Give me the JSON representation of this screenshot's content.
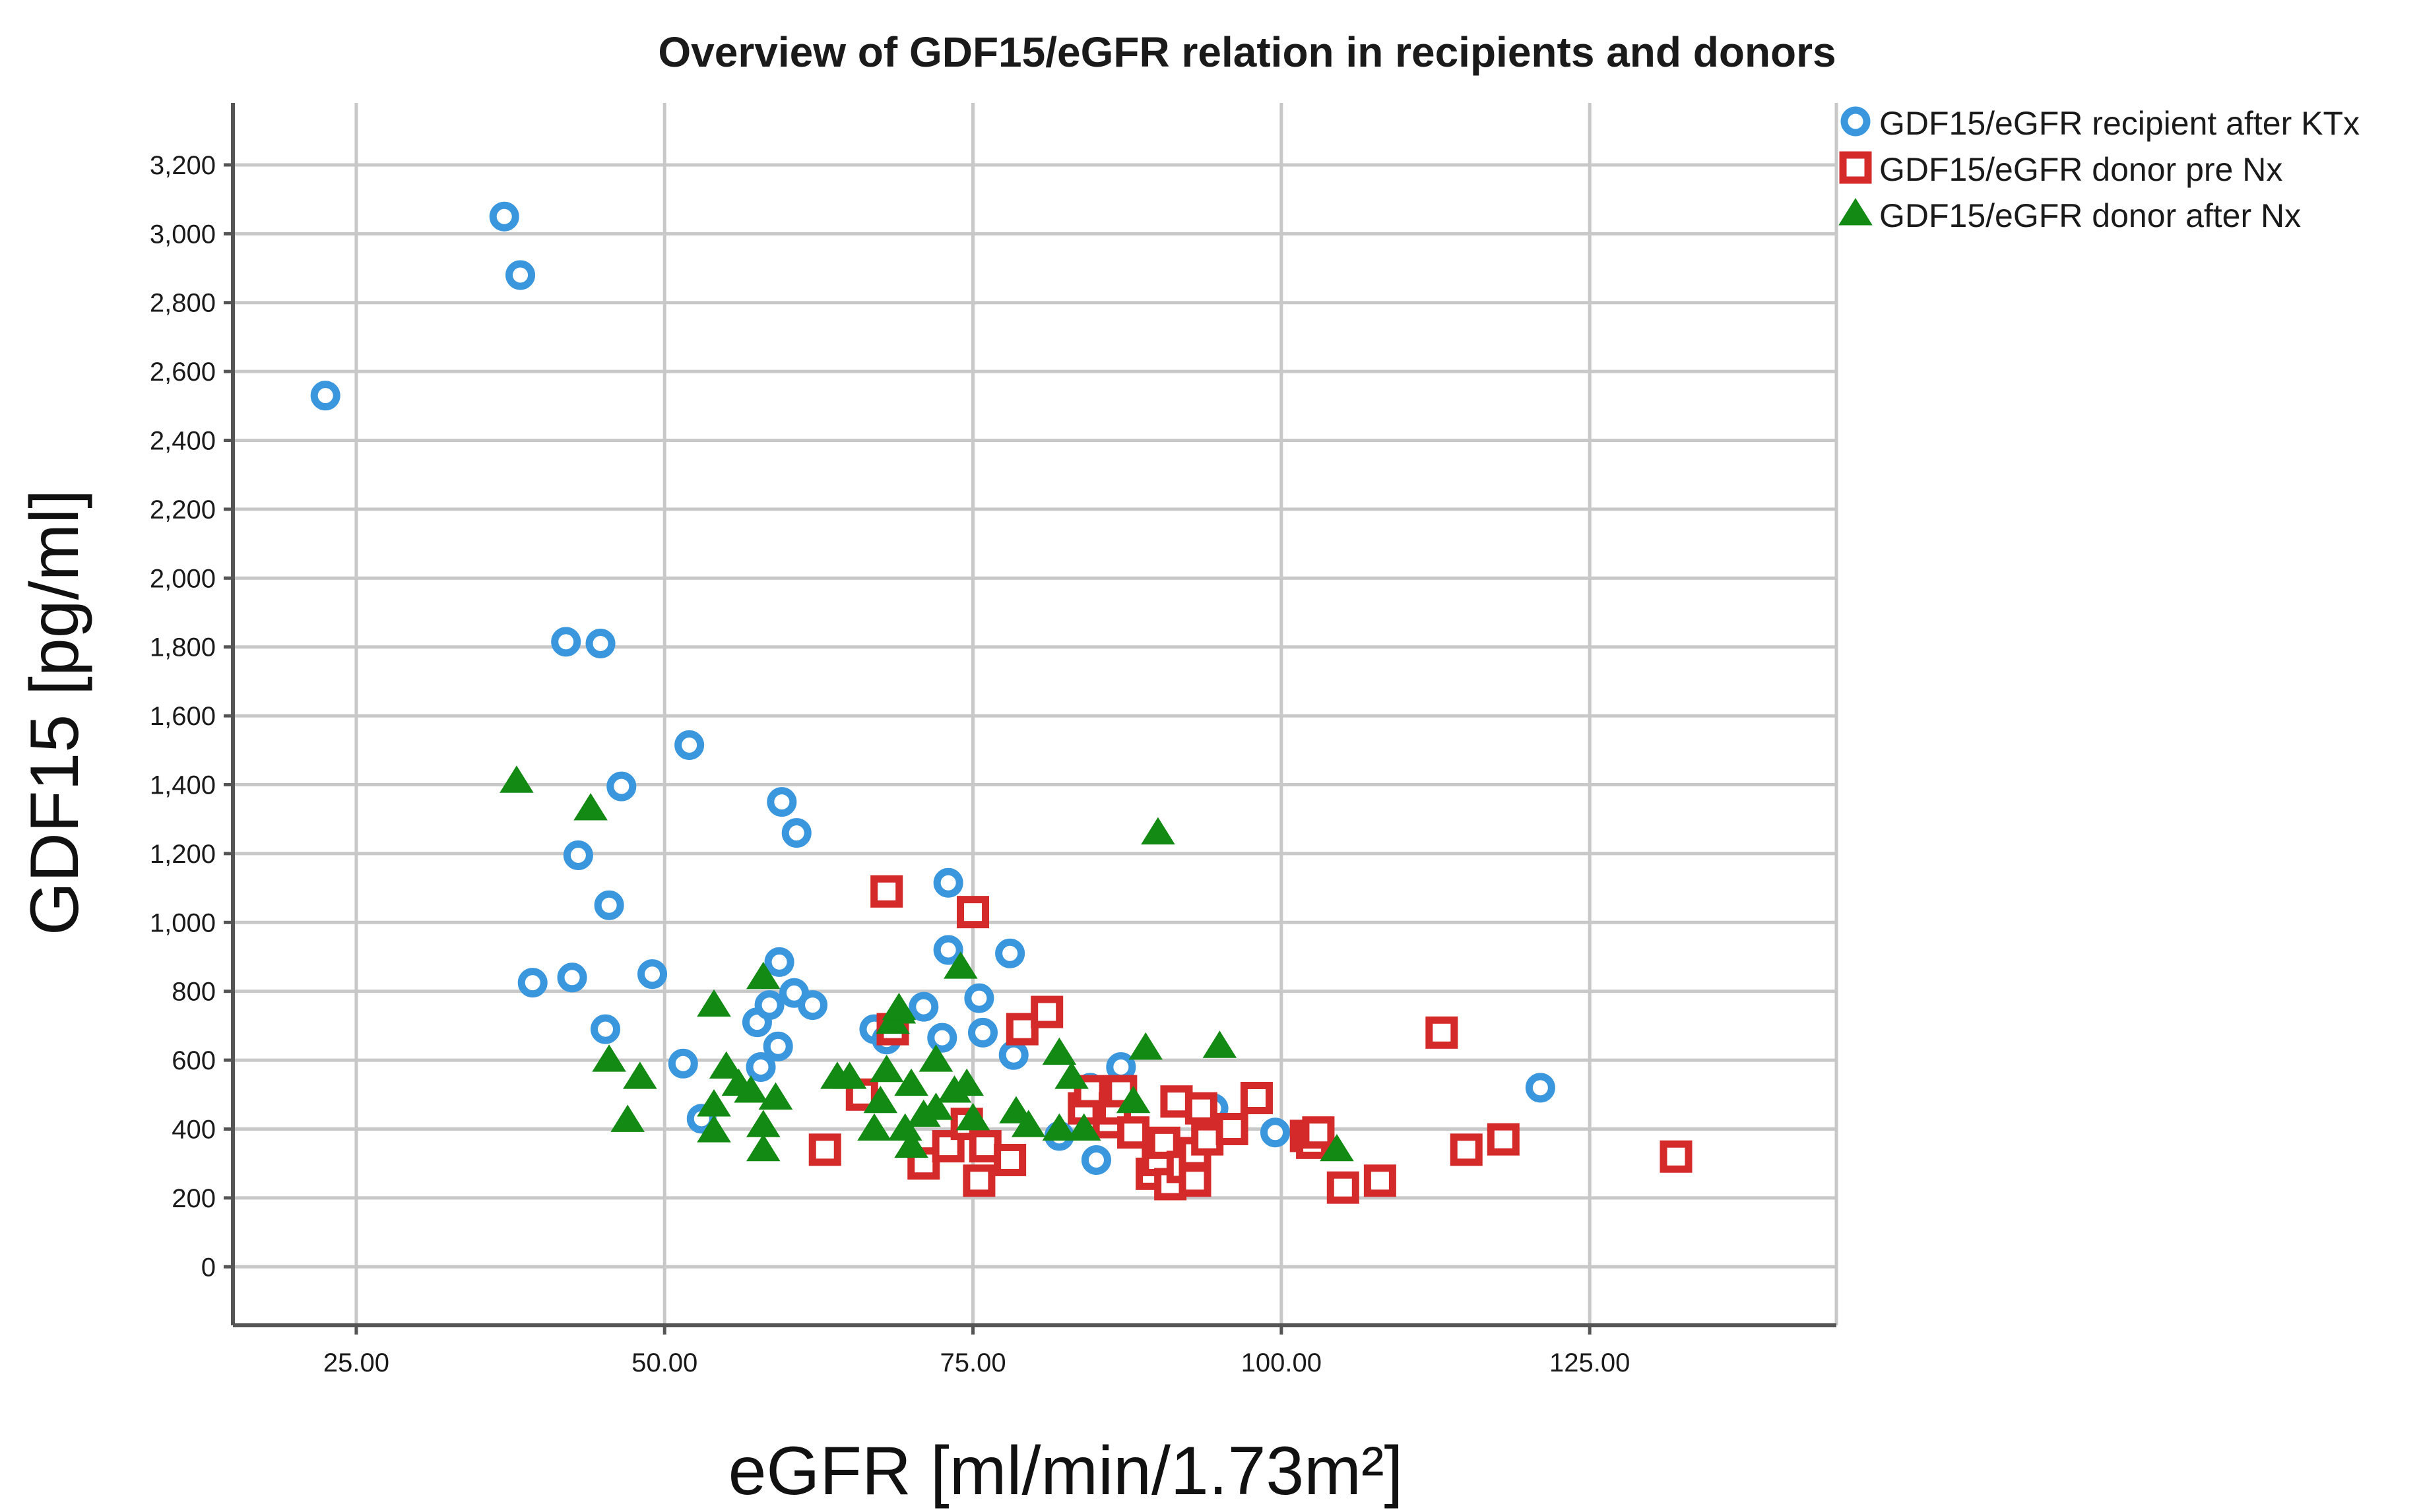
{
  "chart_data": {
    "type": "scatter",
    "title": "Overview of GDF15/eGFR relation in recipients and donors",
    "xlabel": "eGFR [ml/min/1.73m²]",
    "ylabel": "GDF15 [pg/ml]",
    "xlim": [
      15,
      145
    ],
    "ylim": [
      -170,
      3380
    ],
    "x_ticks": [
      25,
      50,
      75,
      100,
      125
    ],
    "x_tick_labels": [
      "25.00",
      "50.00",
      "75.00",
      "100.00",
      "125.00"
    ],
    "y_ticks": [
      0,
      200,
      400,
      600,
      800,
      1000,
      1200,
      1400,
      1600,
      1800,
      2000,
      2200,
      2400,
      2600,
      2800,
      3000,
      3200
    ],
    "y_tick_labels": [
      "0",
      "200",
      "400",
      "600",
      "800",
      "1,000",
      "1,200",
      "1,400",
      "1,600",
      "1,800",
      "2,000",
      "2,200",
      "2,400",
      "2,600",
      "2,800",
      "3,000",
      "3,200"
    ],
    "grid": true,
    "legend_position": "top-right outside",
    "series": [
      {
        "name": "GDF15/eGFR recipient after KTx",
        "marker": "circle",
        "color": "#3a96dd",
        "points": [
          [
            22.5,
            2530
          ],
          [
            37,
            3050
          ],
          [
            38.3,
            2880
          ],
          [
            42,
            1815
          ],
          [
            44.8,
            1810
          ],
          [
            43,
            1195
          ],
          [
            45.5,
            1050
          ],
          [
            46.5,
            1395
          ],
          [
            52,
            1515
          ],
          [
            39.3,
            825
          ],
          [
            42.5,
            840
          ],
          [
            45.2,
            690
          ],
          [
            49,
            850
          ],
          [
            51.5,
            590
          ],
          [
            53,
            430
          ],
          [
            57.5,
            710
          ],
          [
            58.5,
            760
          ],
          [
            57.8,
            580
          ],
          [
            59.2,
            640
          ],
          [
            59.5,
            1350
          ],
          [
            60.7,
            1260
          ],
          [
            59.3,
            885
          ],
          [
            60.5,
            795
          ],
          [
            62,
            760
          ],
          [
            67,
            690
          ],
          [
            68,
            660
          ],
          [
            71,
            755
          ],
          [
            72.5,
            665
          ],
          [
            73,
            920
          ],
          [
            73,
            1115
          ],
          [
            75.5,
            780
          ],
          [
            75.8,
            680
          ],
          [
            78,
            910
          ],
          [
            78.3,
            615
          ],
          [
            82,
            380
          ],
          [
            84.5,
            520
          ],
          [
            85,
            310
          ],
          [
            87,
            580
          ],
          [
            94.5,
            460
          ],
          [
            99.5,
            390
          ],
          [
            121,
            520
          ]
        ]
      },
      {
        "name": "GDF15/eGFR donor pre Nx",
        "marker": "square",
        "color": "#d42a2a",
        "points": [
          [
            63,
            340
          ],
          [
            66,
            500
          ],
          [
            68,
            1090
          ],
          [
            68.5,
            690
          ],
          [
            71,
            300
          ],
          [
            73,
            350
          ],
          [
            74.5,
            415
          ],
          [
            75,
            1030
          ],
          [
            75.5,
            250
          ],
          [
            76,
            350
          ],
          [
            78,
            310
          ],
          [
            79,
            690
          ],
          [
            81,
            740
          ],
          [
            84,
            460
          ],
          [
            84.5,
            510
          ],
          [
            86,
            420
          ],
          [
            86.5,
            460
          ],
          [
            87,
            510
          ],
          [
            88,
            390
          ],
          [
            89.5,
            270
          ],
          [
            90,
            310
          ],
          [
            90.5,
            360
          ],
          [
            91,
            240
          ],
          [
            91.5,
            480
          ],
          [
            92,
            290
          ],
          [
            93,
            250
          ],
          [
            93,
            330
          ],
          [
            93.5,
            460
          ],
          [
            94,
            370
          ],
          [
            96,
            400
          ],
          [
            98,
            490
          ],
          [
            102,
            380
          ],
          [
            102.5,
            360
          ],
          [
            103,
            390
          ],
          [
            105,
            230
          ],
          [
            108,
            250
          ],
          [
            113,
            680
          ],
          [
            115,
            340
          ],
          [
            118,
            370
          ],
          [
            132,
            320
          ]
        ]
      },
      {
        "name": "GDF15/eGFR donor after Nx",
        "marker": "triangle",
        "color": "#138a13",
        "points": [
          [
            38,
            1410
          ],
          [
            44,
            1330
          ],
          [
            45.5,
            600
          ],
          [
            47,
            425
          ],
          [
            48,
            550
          ],
          [
            54,
            760
          ],
          [
            54,
            470
          ],
          [
            54,
            395
          ],
          [
            55,
            580
          ],
          [
            56,
            530
          ],
          [
            57,
            510
          ],
          [
            58,
            840
          ],
          [
            58,
            410
          ],
          [
            58,
            340
          ],
          [
            59,
            490
          ],
          [
            64,
            550
          ],
          [
            65,
            550
          ],
          [
            67,
            400
          ],
          [
            67.5,
            480
          ],
          [
            68,
            570
          ],
          [
            68.5,
            710
          ],
          [
            69,
            740
          ],
          [
            69,
            750
          ],
          [
            69.5,
            400
          ],
          [
            70,
            530
          ],
          [
            70,
            350
          ],
          [
            71,
            440
          ],
          [
            72,
            600
          ],
          [
            72,
            460
          ],
          [
            73.5,
            510
          ],
          [
            74,
            870
          ],
          [
            74.5,
            530
          ],
          [
            75,
            430
          ],
          [
            78.5,
            450
          ],
          [
            79.5,
            410
          ],
          [
            82,
            620
          ],
          [
            82,
            400
          ],
          [
            83,
            550
          ],
          [
            84,
            400
          ],
          [
            88,
            480
          ],
          [
            89,
            635
          ],
          [
            90,
            1260
          ],
          [
            95,
            640
          ],
          [
            104.5,
            340
          ]
        ]
      }
    ]
  }
}
